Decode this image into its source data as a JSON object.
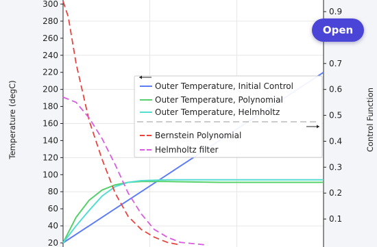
{
  "open_button": {
    "label": "Open"
  },
  "colors": {
    "initial": "#5b7cf5",
    "polynomial": "#55d06a",
    "helmholtz": "#55ddd2",
    "bernstein": "#e8433c",
    "helm_filter": "#d95ae0"
  },
  "chart_data": {
    "type": "line",
    "ylabel_left": "Temperature (degC)",
    "ylabel_right": "Control Function",
    "ylim_left": [
      20,
      300
    ],
    "ylim_right": [
      0,
      0.9
    ],
    "yticks_left": [
      20,
      40,
      60,
      80,
      100,
      120,
      140,
      160,
      180,
      200,
      220,
      240,
      260,
      280,
      300
    ],
    "yticks_right": [
      0.1,
      0.2,
      0.3,
      0.4,
      0.5,
      0.6,
      0.7,
      0.8,
      0.9
    ],
    "xlim": [
      0,
      1
    ],
    "grid": true,
    "legend_position": "center-right",
    "series": [
      {
        "name": "Outer Temperature, Initial Control",
        "axis": "left",
        "style": "solid",
        "color_key": "initial",
        "x": [
          0,
          0.2,
          0.4,
          0.6,
          0.8,
          0.9,
          1.0
        ],
        "y": [
          20,
          60,
          100,
          140,
          180,
          200,
          220
        ]
      },
      {
        "name": "Outer Temperature, Polynomial",
        "axis": "left",
        "style": "solid",
        "color_key": "polynomial",
        "x": [
          0,
          0.05,
          0.1,
          0.15,
          0.2,
          0.25,
          0.3,
          0.4,
          0.6,
          0.8,
          1.0
        ],
        "y": [
          20,
          50,
          70,
          82,
          88,
          91,
          92,
          92,
          91,
          91,
          91
        ]
      },
      {
        "name": "Outer Temperature, Helmholtz",
        "axis": "left",
        "style": "solid",
        "color_key": "helmholtz",
        "x": [
          0,
          0.05,
          0.1,
          0.15,
          0.2,
          0.25,
          0.3,
          0.4,
          0.6,
          0.8,
          1.0
        ],
        "y": [
          20,
          40,
          58,
          75,
          86,
          91,
          93,
          94,
          94,
          94,
          94
        ]
      },
      {
        "name": "Bernstein Polynomial",
        "axis": "right",
        "style": "dashed",
        "color_key": "bernstein",
        "x": [
          0,
          0.02,
          0.05,
          0.1,
          0.15,
          0.2,
          0.25,
          0.3,
          0.35,
          0.4,
          0.45
        ],
        "y": [
          0.94,
          0.88,
          0.7,
          0.48,
          0.33,
          0.2,
          0.11,
          0.06,
          0.03,
          0.01,
          0.0
        ]
      },
      {
        "name": "Helmholtz filter",
        "axis": "right",
        "style": "dashed",
        "color_key": "helm_filter",
        "x": [
          0,
          0.05,
          0.1,
          0.15,
          0.2,
          0.25,
          0.3,
          0.35,
          0.4,
          0.45,
          0.5,
          0.55
        ],
        "y": [
          0.57,
          0.55,
          0.49,
          0.41,
          0.31,
          0.2,
          0.12,
          0.06,
          0.03,
          0.01,
          0.005,
          0.0
        ]
      }
    ]
  }
}
